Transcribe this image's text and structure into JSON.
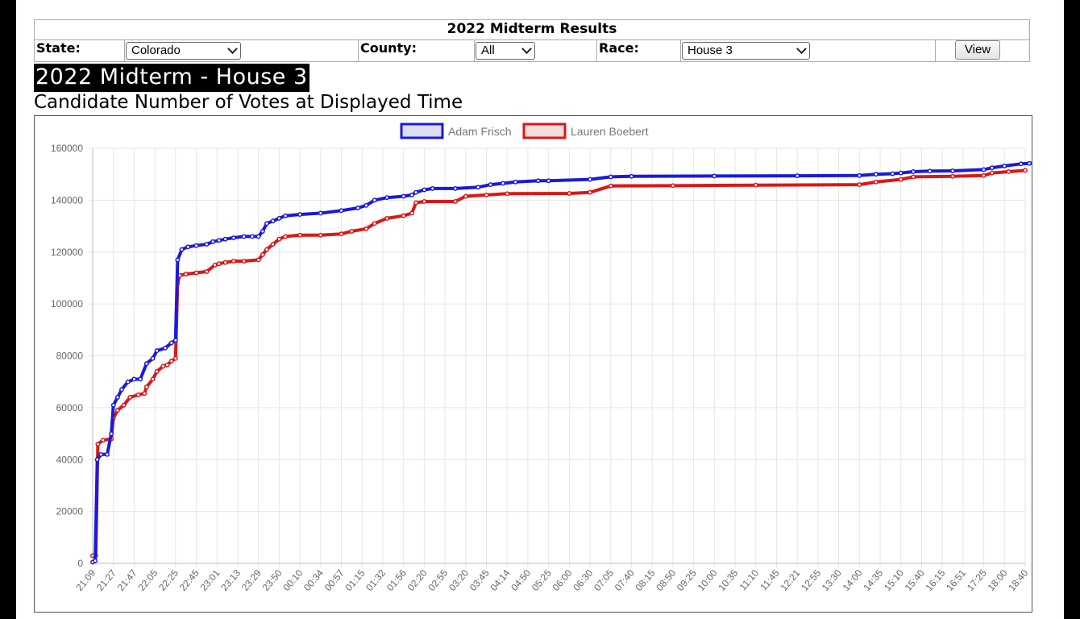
{
  "header": {
    "title": "2022 Midterm Results",
    "state_label": "State:",
    "state_value": "Colorado",
    "county_label": "County:",
    "county_value": "All",
    "race_label": "Race:",
    "race_value": "House 3",
    "view_label": "View"
  },
  "heading": "2022 Midterm - House 3",
  "subheading": "Candidate Number of Votes at Displayed Time",
  "chart_data": {
    "type": "line",
    "title": "",
    "xlabel": "",
    "ylabel": "",
    "ylim": [
      0,
      160000
    ],
    "yticks": [
      0,
      20000,
      40000,
      60000,
      80000,
      100000,
      120000,
      140000,
      160000
    ],
    "categories": [
      "21:09",
      "21:27",
      "21:47",
      "22:05",
      "22:25",
      "22:45",
      "23:01",
      "23:13",
      "23:29",
      "23:50",
      "00:10",
      "00:34",
      "00:57",
      "01:15",
      "01:32",
      "01:56",
      "02:20",
      "02:55",
      "03:20",
      "03:45",
      "04:14",
      "04:50",
      "05:25",
      "06:00",
      "06:30",
      "07:05",
      "07:40",
      "08:15",
      "08:50",
      "09:25",
      "10:00",
      "10:35",
      "11:10",
      "11:45",
      "12:21",
      "12:55",
      "13:30",
      "14:00",
      "14:35",
      "15:10",
      "15:40",
      "16:15",
      "16:51",
      "17:25",
      "18:00",
      "18:40"
    ],
    "grid": true,
    "legend": "top-center",
    "series": [
      {
        "name": "Adam Frisch",
        "color": "#1a1adb",
        "points": [
          [
            0.0,
            500
          ],
          [
            0.12,
            1000
          ],
          [
            0.22,
            40000
          ],
          [
            0.4,
            42000
          ],
          [
            0.7,
            42000
          ],
          [
            0.9,
            50000
          ],
          [
            1.0,
            61000
          ],
          [
            1.2,
            64000
          ],
          [
            1.4,
            67000
          ],
          [
            1.7,
            70000
          ],
          [
            2.0,
            71000
          ],
          [
            2.3,
            71000
          ],
          [
            2.6,
            77000
          ],
          [
            2.9,
            79000
          ],
          [
            3.1,
            82000
          ],
          [
            3.5,
            83000
          ],
          [
            3.8,
            85000
          ],
          [
            4.0,
            86000
          ],
          [
            4.1,
            117000
          ],
          [
            4.3,
            121000
          ],
          [
            4.6,
            122000
          ],
          [
            5.0,
            122500
          ],
          [
            5.5,
            123000
          ],
          [
            5.8,
            124000
          ],
          [
            6.1,
            124500
          ],
          [
            6.4,
            125000
          ],
          [
            6.8,
            125500
          ],
          [
            7.3,
            126000
          ],
          [
            7.7,
            126000
          ],
          [
            8.0,
            126000
          ],
          [
            8.2,
            128000
          ],
          [
            8.4,
            131000
          ],
          [
            8.7,
            132000
          ],
          [
            9.0,
            133000
          ],
          [
            9.3,
            134000
          ],
          [
            10.0,
            134500
          ],
          [
            11.0,
            135000
          ],
          [
            12.0,
            136000
          ],
          [
            12.8,
            137000
          ],
          [
            13.2,
            138000
          ],
          [
            13.6,
            140000
          ],
          [
            14.2,
            141000
          ],
          [
            15.0,
            141500
          ],
          [
            15.4,
            142000
          ],
          [
            15.6,
            143000
          ],
          [
            16.0,
            144000
          ],
          [
            16.4,
            144500
          ],
          [
            17.5,
            144500
          ],
          [
            18.6,
            145000
          ],
          [
            19.2,
            146000
          ],
          [
            19.8,
            146500
          ],
          [
            20.4,
            147000
          ],
          [
            21.5,
            147500
          ],
          [
            22.0,
            147500
          ],
          [
            24.0,
            148000
          ],
          [
            25.0,
            149000
          ],
          [
            26.0,
            149200
          ],
          [
            30.0,
            149300
          ],
          [
            34.0,
            149400
          ],
          [
            37.0,
            149500
          ],
          [
            37.8,
            150000
          ],
          [
            38.6,
            150200
          ],
          [
            39.0,
            150500
          ],
          [
            39.6,
            151000
          ],
          [
            40.4,
            151200
          ],
          [
            41.5,
            151300
          ],
          [
            43.0,
            151800
          ],
          [
            43.4,
            152500
          ],
          [
            44.0,
            153200
          ],
          [
            44.8,
            154000
          ],
          [
            45.2,
            154200
          ],
          [
            46.0,
            154500
          ]
        ]
      },
      {
        "name": "Lauren Boebert",
        "color": "#dd1616",
        "points": [
          [
            0.0,
            3000
          ],
          [
            0.15,
            3000
          ],
          [
            0.25,
            46000
          ],
          [
            0.5,
            47500
          ],
          [
            0.9,
            48000
          ],
          [
            1.0,
            56000
          ],
          [
            1.2,
            59000
          ],
          [
            1.5,
            61000
          ],
          [
            1.8,
            64000
          ],
          [
            2.2,
            65000
          ],
          [
            2.5,
            65500
          ],
          [
            2.6,
            68000
          ],
          [
            2.9,
            71000
          ],
          [
            3.1,
            74000
          ],
          [
            3.4,
            76000
          ],
          [
            3.6,
            76500
          ],
          [
            3.8,
            78000
          ],
          [
            4.0,
            79000
          ],
          [
            4.1,
            108000
          ],
          [
            4.2,
            111000
          ],
          [
            4.5,
            111500
          ],
          [
            5.0,
            112000
          ],
          [
            5.5,
            112500
          ],
          [
            5.9,
            115000
          ],
          [
            6.1,
            115500
          ],
          [
            6.4,
            116000
          ],
          [
            6.8,
            116500
          ],
          [
            7.3,
            116500
          ],
          [
            8.0,
            117000
          ],
          [
            8.2,
            119000
          ],
          [
            8.4,
            121000
          ],
          [
            8.7,
            123000
          ],
          [
            9.0,
            125000
          ],
          [
            9.3,
            126000
          ],
          [
            10.0,
            126500
          ],
          [
            11.0,
            126500
          ],
          [
            12.0,
            127000
          ],
          [
            12.5,
            128000
          ],
          [
            13.2,
            129000
          ],
          [
            13.6,
            131000
          ],
          [
            14.2,
            133000
          ],
          [
            15.0,
            134000
          ],
          [
            15.4,
            135000
          ],
          [
            15.6,
            139000
          ],
          [
            16.0,
            139500
          ],
          [
            17.5,
            139500
          ],
          [
            18.0,
            141500
          ],
          [
            19.0,
            142000
          ],
          [
            20.0,
            142500
          ],
          [
            23.0,
            142600
          ],
          [
            24.0,
            143000
          ],
          [
            25.0,
            145500
          ],
          [
            28.0,
            145600
          ],
          [
            32.0,
            145800
          ],
          [
            37.0,
            146000
          ],
          [
            37.8,
            147000
          ],
          [
            39.0,
            148000
          ],
          [
            39.6,
            149000
          ],
          [
            41.5,
            149200
          ],
          [
            43.0,
            149500
          ],
          [
            43.4,
            150500
          ],
          [
            44.2,
            151000
          ],
          [
            45.0,
            151500
          ]
        ]
      }
    ]
  }
}
